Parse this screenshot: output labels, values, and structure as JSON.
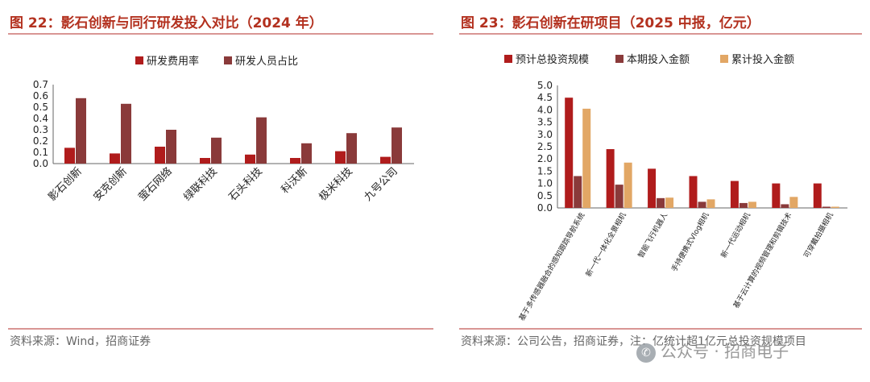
{
  "left": {
    "title": "图 22：影石创新与同行研发投入对比（2024 年）",
    "source": "资料来源：Wind，招商证券"
  },
  "right": {
    "title": "图 23：影石创新在研项目（2025 中报，亿元）",
    "source": "资料来源：公司公告，招商证券，注：亿统计超1亿元总投资规模项目"
  },
  "watermark": {
    "text": "公众号 · 招商电子"
  },
  "colors": {
    "series1": "#b01c1c",
    "series2": "#8a3a3a",
    "series3": "#e2a765",
    "title": "#b3311f"
  },
  "chart_data": [
    {
      "type": "bar",
      "title": "图 22：影石创新与同行研发投入对比（2024 年）",
      "categories": [
        "影石创新",
        "安克创新",
        "萤石网络",
        "绿联科技",
        "石头科技",
        "科沃斯",
        "极米科技",
        "九号公司"
      ],
      "series": [
        {
          "name": "研发费用率",
          "values": [
            0.14,
            0.09,
            0.15,
            0.05,
            0.08,
            0.05,
            0.11,
            0.06
          ]
        },
        {
          "name": "研发人员占比",
          "values": [
            0.58,
            0.53,
            0.3,
            0.23,
            0.41,
            0.18,
            0.27,
            0.32
          ]
        }
      ],
      "ylim": [
        0,
        0.7
      ],
      "yticks": [
        "0.0",
        "0.1",
        "0.2",
        "0.3",
        "0.4",
        "0.5",
        "0.6",
        "0.7"
      ],
      "legend": "top-center",
      "grid": false
    },
    {
      "type": "bar",
      "title": "图 23：影石创新在研项目（2025 中报，亿元）",
      "categories": [
        "基于多传感器融合的感知跟踪导航系统",
        "新一代一体化全景相机",
        "智能飞行机器人",
        "手持便携式Vlog相机",
        "新一代运动相机",
        "基于云计算的视频管理和剪辑技术",
        "可穿戴拍摄相机"
      ],
      "series": [
        {
          "name": "预计总投资规模",
          "values": [
            4.5,
            2.4,
            1.6,
            1.3,
            1.1,
            1.0,
            1.0
          ]
        },
        {
          "name": "本期投入金额",
          "values": [
            1.3,
            0.95,
            0.4,
            0.25,
            0.2,
            0.15,
            0.05
          ]
        },
        {
          "name": "累计投入金额",
          "values": [
            4.05,
            1.85,
            0.42,
            0.35,
            0.25,
            0.45,
            0.05
          ]
        }
      ],
      "ylim": [
        0,
        5.0
      ],
      "yticks": [
        "0.0",
        "0.5",
        "1.0",
        "1.5",
        "2.0",
        "2.5",
        "3.0",
        "3.5",
        "4.0",
        "4.5",
        "5.0"
      ],
      "legend": "top-center",
      "grid": false
    }
  ]
}
